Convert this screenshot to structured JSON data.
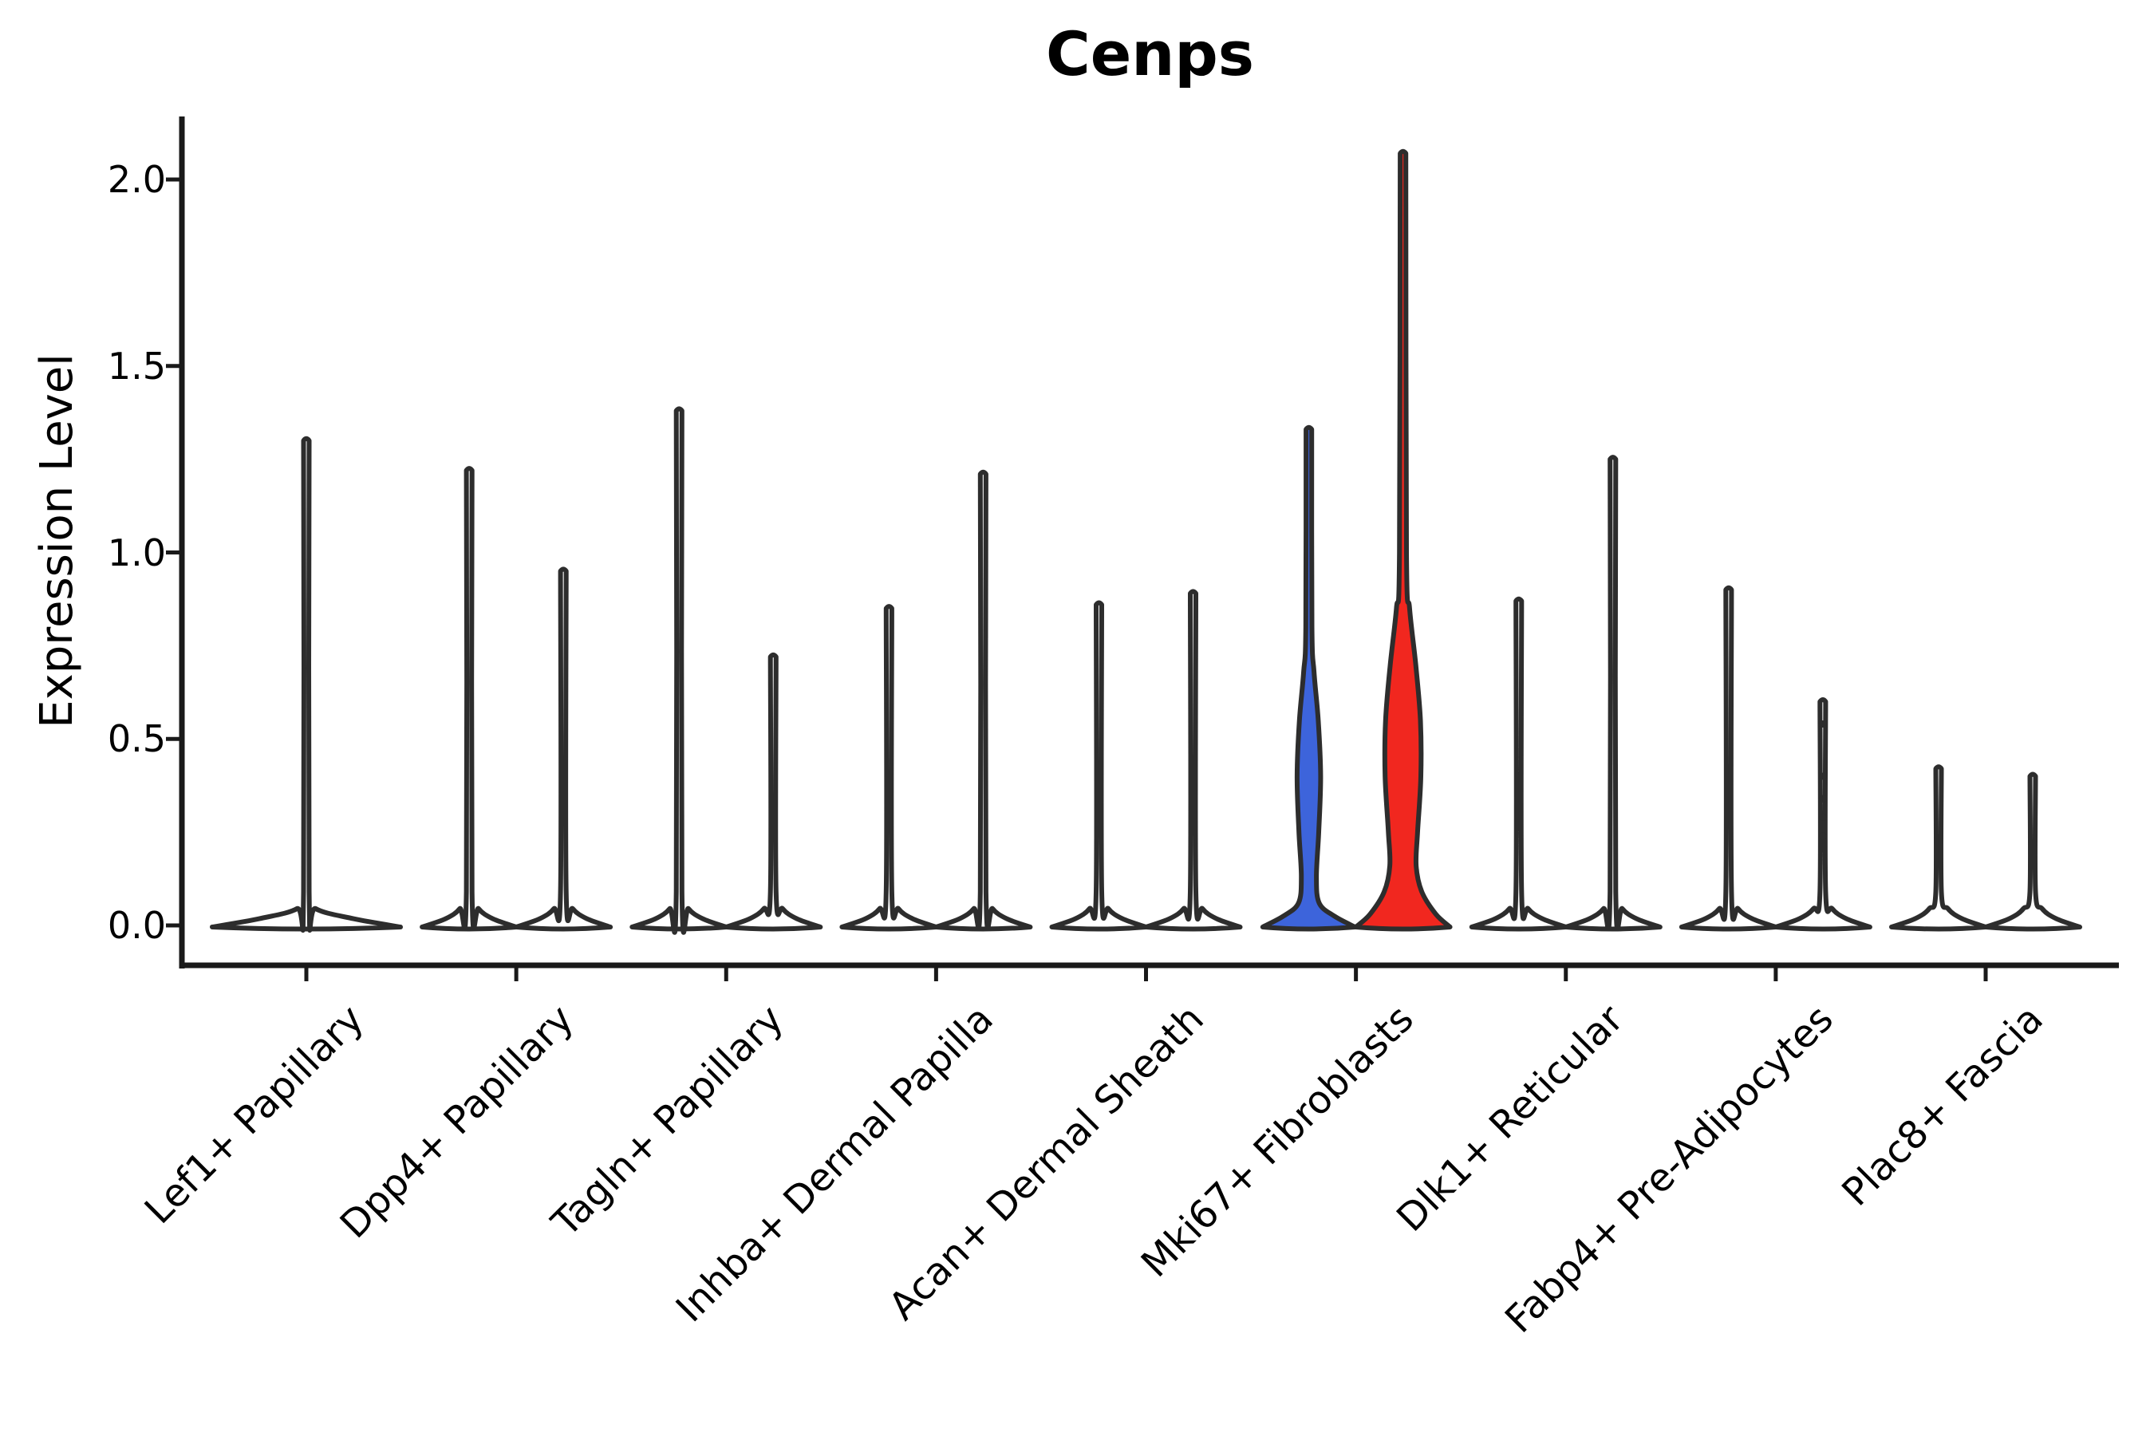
{
  "figure": {
    "title": "Cenps",
    "background_color": "#ffffff"
  },
  "chart_data": {
    "type": "violin",
    "title": "Cenps",
    "ylabel": "Expression Level",
    "xlabel": "",
    "grid": false,
    "legend_position": "none",
    "yticks": [
      0.0,
      0.5,
      1.0,
      1.5,
      2.0
    ],
    "ylim": [
      -0.1,
      2.17
    ],
    "colors": {
      "outline": "#2d2d2d",
      "axis": "#1a1a1a",
      "group_blue_fill": "#3D64DB",
      "group_red_fill": "#F1271F",
      "default_fill": "#ffffff"
    },
    "categories": [
      "Lef1+ Papillary",
      "Dpp4+ Papillary",
      "Tagln+ Papillary",
      "Inhba+ Dermal Papilla",
      "Acan+ Dermal Sheath",
      "Mki67+ Fibroblasts",
      "Dlk1+ Reticular",
      "Fabp4+ Pre-Adipocytes",
      "Plac8+ Fascia"
    ],
    "violins": [
      {
        "category_index": 0,
        "category": "Lef1+ Papillary",
        "position": "single",
        "max_expression": 1.3,
        "fill": "#ffffff"
      },
      {
        "category_index": 1,
        "category": "Dpp4+ Papillary",
        "position": "left",
        "max_expression": 1.22,
        "fill": "#ffffff"
      },
      {
        "category_index": 1,
        "category": "Dpp4+ Papillary",
        "position": "right",
        "max_expression": 0.95,
        "fill": "#ffffff"
      },
      {
        "category_index": 2,
        "category": "Tagln+ Papillary",
        "position": "left",
        "max_expression": 1.38,
        "fill": "#ffffff"
      },
      {
        "category_index": 2,
        "category": "Tagln+ Papillary",
        "position": "right",
        "max_expression": 0.72,
        "fill": "#ffffff"
      },
      {
        "category_index": 3,
        "category": "Inhba+ Dermal Papilla",
        "position": "left",
        "max_expression": 0.85,
        "fill": "#ffffff"
      },
      {
        "category_index": 3,
        "category": "Inhba+ Dermal Papilla",
        "position": "right",
        "max_expression": 1.21,
        "fill": "#ffffff"
      },
      {
        "category_index": 4,
        "category": "Acan+ Dermal Sheath",
        "position": "left",
        "max_expression": 0.86,
        "fill": "#ffffff"
      },
      {
        "category_index": 4,
        "category": "Acan+ Dermal Sheath",
        "position": "right",
        "max_expression": 0.89,
        "fill": "#ffffff"
      },
      {
        "category_index": 5,
        "category": "Mki67+ Fibroblasts",
        "position": "left",
        "max_expression": 1.33,
        "fill": "#3D64DB",
        "profile": [
          [
            0,
            0.98
          ],
          [
            0.025,
            0.54
          ],
          [
            0.06,
            0.22
          ],
          [
            0.13,
            0.16
          ],
          [
            0.25,
            0.21
          ],
          [
            0.4,
            0.25
          ],
          [
            0.55,
            0.2
          ],
          [
            0.68,
            0.11
          ],
          [
            0.8,
            0.065
          ],
          [
            1.33,
            0.06
          ]
        ]
      },
      {
        "category_index": 5,
        "category": "Mki67+ Fibroblasts",
        "position": "right",
        "max_expression": 2.07,
        "fill": "#F1271F",
        "profile": [
          [
            0,
            1.0
          ],
          [
            0.03,
            0.7
          ],
          [
            0.09,
            0.4
          ],
          [
            0.16,
            0.28
          ],
          [
            0.25,
            0.31
          ],
          [
            0.4,
            0.38
          ],
          [
            0.55,
            0.37
          ],
          [
            0.7,
            0.27
          ],
          [
            0.85,
            0.14
          ],
          [
            1.0,
            0.075
          ],
          [
            2.07,
            0.06
          ]
        ]
      },
      {
        "category_index": 6,
        "category": "Dlk1+ Reticular",
        "position": "left",
        "max_expression": 0.87,
        "fill": "#ffffff"
      },
      {
        "category_index": 6,
        "category": "Dlk1+ Reticular",
        "position": "right",
        "max_expression": 1.25,
        "fill": "#ffffff"
      },
      {
        "category_index": 7,
        "category": "Fabp4+ Pre-Adipocytes",
        "position": "left",
        "max_expression": 0.9,
        "fill": "#ffffff"
      },
      {
        "category_index": 7,
        "category": "Fabp4+ Pre-Adipocytes",
        "position": "right",
        "max_expression": 0.6,
        "fill": "#ffffff",
        "dots": [
          0.24,
          0.29,
          0.34,
          0.4,
          0.54
        ]
      },
      {
        "category_index": 8,
        "category": "Plac8+ Fascia",
        "position": "left",
        "max_expression": 0.42,
        "fill": "#ffffff"
      },
      {
        "category_index": 8,
        "category": "Plac8+ Fascia",
        "position": "right",
        "max_expression": 0.4,
        "fill": "#ffffff"
      }
    ]
  }
}
